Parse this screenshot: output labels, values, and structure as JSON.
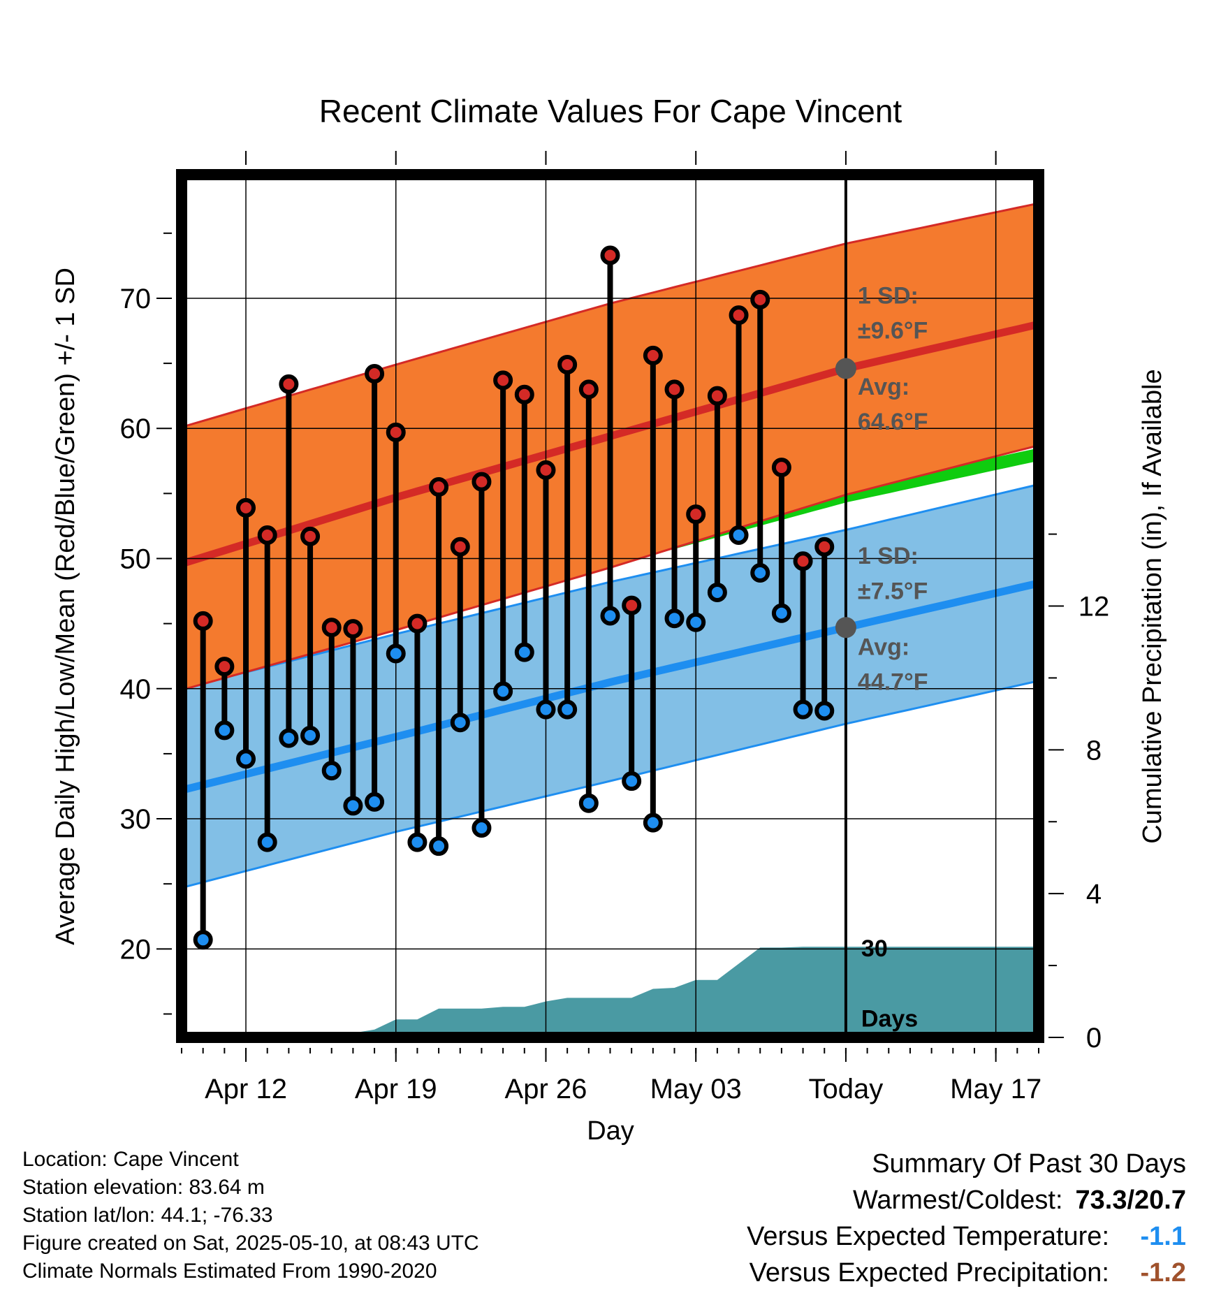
{
  "chart_data": {
    "type": "line",
    "title": "Recent Climate Values For Cape Vincent",
    "xlabel": "Day",
    "ylabel": "Average Daily High/Low/Mean (Red/Blue/Green) +/- 1 SD",
    "y2label": "Cumulative Precipitation (in), If Available",
    "ylim": [
      13.2,
      79.5
    ],
    "y2lim": [
      0,
      24
    ],
    "y_ticks": [
      20,
      30,
      40,
      50,
      60,
      70
    ],
    "y2_ticks": [
      0,
      4,
      8,
      12
    ],
    "x_range": [
      "Apr 09",
      "May 19"
    ],
    "x_ticks": [
      {
        "date": "Apr 12",
        "label": "Apr 12"
      },
      {
        "date": "Apr 19",
        "label": "Apr 19"
      },
      {
        "date": "Apr 26",
        "label": "Apr 26"
      },
      {
        "date": "May 03",
        "label": "May 03"
      },
      {
        "date": "May 10",
        "label": "Today"
      },
      {
        "date": "May 17",
        "label": "May 17"
      }
    ],
    "grid": true,
    "today": "May 10",
    "colors": {
      "high_band": "#F47A2E",
      "high_line": "#D42A26",
      "low_band": "#82BFE6",
      "low_line": "#1E8EF0",
      "mean_line": "#0FCC0F",
      "precip": "#4A9AA3",
      "high_dot": "#D42A26",
      "low_dot": "#1E8EF0",
      "annot": "#555555"
    },
    "normals": {
      "dates": [
        "Apr 09",
        "Apr 19",
        "Apr 29",
        "May 10",
        "May 19"
      ],
      "avg_high": [
        49.6,
        54.7,
        59.4,
        64.6,
        68.0
      ],
      "high_upper": [
        60.1,
        64.9,
        69.6,
        74.2,
        77.3
      ],
      "high_lower": [
        39.9,
        44.5,
        49.3,
        54.9,
        58.7
      ],
      "avg_low": [
        32.2,
        36.3,
        40.5,
        44.7,
        48.1
      ],
      "low_upper": [
        40.0,
        44.2,
        48.2,
        52.2,
        55.7
      ],
      "low_lower": [
        24.7,
        29.0,
        32.9,
        37.3,
        40.6
      ],
      "avg_mean": [
        41.0,
        45.4,
        49.9,
        54.8,
        58.0
      ]
    },
    "series": [
      {
        "name": "High",
        "x": [
          "Apr 10",
          "Apr 11",
          "Apr 12",
          "Apr 13",
          "Apr 14",
          "Apr 15",
          "Apr 16",
          "Apr 17",
          "Apr 18",
          "Apr 19",
          "Apr 20",
          "Apr 21",
          "Apr 22",
          "Apr 23",
          "Apr 24",
          "Apr 25",
          "Apr 26",
          "Apr 27",
          "Apr 28",
          "Apr 29",
          "Apr 30",
          "May 01",
          "May 02",
          "May 03",
          "May 04",
          "May 05",
          "May 06",
          "May 07",
          "May 08",
          "May 09"
        ],
        "values": [
          45.2,
          41.7,
          53.9,
          51.8,
          63.4,
          51.7,
          44.7,
          44.6,
          64.2,
          59.7,
          45.0,
          55.5,
          50.9,
          55.9,
          63.7,
          62.6,
          56.8,
          64.9,
          63.0,
          73.3,
          46.4,
          65.6,
          63.0,
          53.4,
          62.5,
          68.7,
          69.9,
          57.0,
          49.8,
          50.9
        ]
      },
      {
        "name": "Low",
        "x": [
          "Apr 10",
          "Apr 11",
          "Apr 12",
          "Apr 13",
          "Apr 14",
          "Apr 15",
          "Apr 16",
          "Apr 17",
          "Apr 18",
          "Apr 19",
          "Apr 20",
          "Apr 21",
          "Apr 22",
          "Apr 23",
          "Apr 24",
          "Apr 25",
          "Apr 26",
          "Apr 27",
          "Apr 28",
          "Apr 29",
          "Apr 30",
          "May 01",
          "May 02",
          "May 03",
          "May 04",
          "May 05",
          "May 06",
          "May 07",
          "May 08",
          "May 09"
        ],
        "values": [
          20.7,
          36.8,
          34.6,
          28.2,
          36.2,
          36.4,
          33.7,
          31.0,
          31.3,
          42.7,
          28.2,
          27.9,
          37.4,
          29.3,
          39.8,
          42.8,
          38.4,
          38.4,
          31.2,
          45.6,
          32.9,
          29.7,
          45.4,
          45.1,
          47.4,
          51.8,
          48.9,
          45.8,
          38.4,
          38.3
        ]
      },
      {
        "name": "Cumulative Precipitation",
        "axis": "y2",
        "x": [
          "Apr 09",
          "Apr 10",
          "Apr 11",
          "Apr 12",
          "Apr 13",
          "Apr 14",
          "Apr 15",
          "Apr 16",
          "Apr 17",
          "Apr 18",
          "Apr 19",
          "Apr 20",
          "Apr 21",
          "Apr 22",
          "Apr 23",
          "Apr 24",
          "Apr 25",
          "Apr 26",
          "Apr 27",
          "Apr 28",
          "Apr 29",
          "Apr 30",
          "May 01",
          "May 02",
          "May 03",
          "May 04",
          "May 05",
          "May 06",
          "May 07",
          "May 08",
          "May 09",
          "May 10",
          "May 19"
        ],
        "values": [
          0,
          0,
          0.12,
          0.12,
          0.12,
          0.12,
          0.12,
          0.12,
          0.12,
          0.22,
          0.5,
          0.5,
          0.8,
          0.8,
          0.8,
          0.85,
          0.85,
          1.0,
          1.1,
          1.1,
          1.1,
          1.1,
          1.35,
          1.38,
          1.6,
          1.6,
          2.05,
          2.5,
          2.5,
          2.52,
          2.52,
          2.52,
          2.52
        ]
      }
    ],
    "annotations": {
      "high_sd_label": "1 SD:",
      "high_sd_value": "±9.6°F",
      "high_avg_label": "Avg:",
      "high_avg_value": "64.6°F",
      "low_sd_label": "1 SD:",
      "low_sd_value": "±7.5°F",
      "low_avg_label": "Avg:",
      "low_avg_value": "44.7°F",
      "precip_label_1": "30",
      "precip_label_2": "Days"
    }
  },
  "footer": {
    "location": "Location: Cape Vincent",
    "elevation": "Station elevation: 83.64 m",
    "latlon": "Station lat/lon: 44.1; -76.33",
    "created": "Figure created on Sat, 2025-05-10, at 08:43 UTC",
    "normals": "Climate Normals Estimated From 1990-2020"
  },
  "summary": {
    "title": "Summary Of Past 30 Days",
    "warm_cold_label": "Warmest/Coldest:",
    "warm_cold_value": "73.3/20.7",
    "temp_label": "Versus Expected Temperature:",
    "temp_value": "-1.1",
    "temp_color": "#1E8EF0",
    "precip_label": "Versus Expected Precipitation:",
    "precip_value": "-1.2",
    "precip_color": "#A0522D"
  }
}
